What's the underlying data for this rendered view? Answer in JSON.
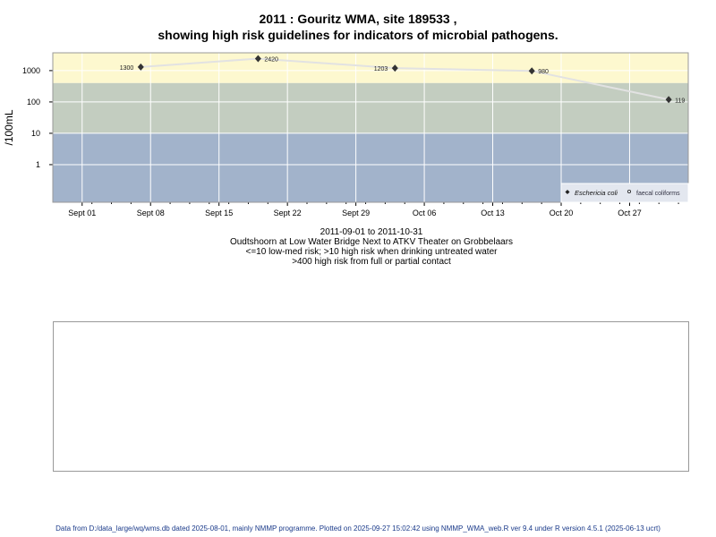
{
  "title_line1": "2011 : Gouritz WMA, site 189533 ,",
  "title_line2": "showing high risk guidelines for indicators of microbial pathogens.",
  "caption": [
    "2011-09-01 to 2011-10-31",
    "Oudtshoorn at Low Water Bridge Next to ATKV Theater on Grobbelaars",
    "<=10 low-med risk; >10 high risk when drinking untreated water",
    ">400 high risk from full or partial contact"
  ],
  "footer": "Data from D:/data_large/wq/wms.db dated 2025-08-01, mainly NMMP programme. Plotted on 2025-09-27 15:02:42 using NMMP_WMA_web.R ver 9.4 under R version 4.5.1 (2025-06-13 ucrt)",
  "chart_data": {
    "type": "line",
    "ylabel": "/100mL",
    "yscale": "log",
    "ylim": [
      0.063,
      3700
    ],
    "xlim": [
      "2011-08-29",
      "2011-11-02"
    ],
    "yticks": [
      1,
      10,
      100,
      1000
    ],
    "ytick_labels": [
      "1",
      "10",
      "100",
      "1000"
    ],
    "xticks": [
      "2011-09-01",
      "2011-09-08",
      "2011-09-15",
      "2011-09-22",
      "2011-09-29",
      "2011-10-06",
      "2011-10-13",
      "2011-10-20",
      "2011-10-27"
    ],
    "xtick_labels": [
      "Sept 01",
      "Sept 08",
      "Sept 15",
      "Sept 22",
      "Sept 29",
      "Oct 06",
      "Oct 13",
      "Oct 20",
      "Oct 27"
    ],
    "grid": true,
    "bands": [
      {
        "from": 400,
        "to": 3700,
        "color": "#fdf8cf"
      },
      {
        "from": 10,
        "to": 400,
        "color": "#c3cdc0"
      },
      {
        "from": 0.063,
        "to": 10,
        "color": "#a2b3cb"
      }
    ],
    "series": [
      {
        "name": "Eschericia coli",
        "marker": "filled-diamond",
        "color": "#333333",
        "x": [
          "2011-09-07",
          "2011-09-19",
          "2011-10-03",
          "2011-10-17",
          "2011-10-31"
        ],
        "values": [
          1300,
          2420,
          1203,
          980,
          119
        ],
        "labels": [
          "1300",
          "2420",
          "1203",
          "980",
          "119"
        ]
      }
    ],
    "legend_entries": [
      "Eschericia coli",
      "faecal coliforms"
    ],
    "legend_position": "bottom-right"
  }
}
